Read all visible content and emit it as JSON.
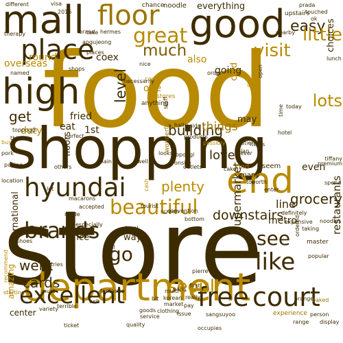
{
  "palette": [
    "#3d2b00",
    "#5c4100",
    "#7a5a00",
    "#9c7400",
    "#b88a00",
    "#c99a10"
  ],
  "words": [
    {
      "t": "food",
      "c": 4,
      "v": false
    },
    {
      "t": "store",
      "c": 0,
      "v": false
    },
    {
      "t": "shopping",
      "c": 0,
      "v": false
    },
    {
      "t": "department",
      "c": 4,
      "v": false
    },
    {
      "t": "mall",
      "c": 0,
      "v": false
    },
    {
      "t": "good",
      "c": 0,
      "v": false
    },
    {
      "t": "high",
      "c": 0,
      "v": false
    },
    {
      "t": "place",
      "c": 0,
      "v": false
    },
    {
      "t": "floor",
      "c": 3,
      "v": false
    },
    {
      "t": "end",
      "c": 4,
      "v": false
    },
    {
      "t": "hyundai",
      "c": 0,
      "v": false
    },
    {
      "t": "great",
      "c": 4,
      "v": false
    },
    {
      "t": "free",
      "c": 0,
      "v": false
    },
    {
      "t": "court",
      "c": 0,
      "v": false
    },
    {
      "t": "excellent",
      "c": 0,
      "v": false
    },
    {
      "t": "beautiful",
      "c": 4,
      "v": false
    },
    {
      "t": "brands",
      "c": 0,
      "v": false
    },
    {
      "t": "see",
      "c": 0,
      "v": false
    },
    {
      "t": "like",
      "c": 0,
      "v": false
    },
    {
      "t": "visit",
      "c": 4,
      "v": false
    },
    {
      "t": "much",
      "c": 2,
      "v": false
    },
    {
      "t": "easy",
      "c": 0,
      "v": false
    },
    {
      "t": "seoul",
      "c": 4,
      "v": false
    },
    {
      "t": "go",
      "c": 0,
      "v": false
    },
    {
      "t": "get",
      "c": 0,
      "v": false
    },
    {
      "t": "level",
      "c": 0,
      "v": true
    },
    {
      "t": "little",
      "c": 4,
      "v": false
    },
    {
      "t": "lots",
      "c": 4,
      "v": false
    },
    {
      "t": "plenty",
      "c": 4,
      "v": false
    },
    {
      "t": "downstairs",
      "c": 0,
      "v": false
    },
    {
      "t": "grocery",
      "c": 0,
      "v": false
    },
    {
      "t": "supermarket",
      "c": 0,
      "v": true
    },
    {
      "t": "restaurants",
      "c": 0,
      "v": true
    },
    {
      "t": "international",
      "c": 0,
      "v": true
    },
    {
      "t": "cards",
      "c": 0,
      "v": false
    },
    {
      "t": "went",
      "c": 0,
      "v": false
    },
    {
      "t": "metro",
      "c": 0,
      "v": false
    },
    {
      "t": "line",
      "c": 0,
      "v": false
    },
    {
      "t": "building",
      "c": 0,
      "v": false
    },
    {
      "t": "things",
      "c": 3,
      "v": false
    },
    {
      "t": "love",
      "c": 0,
      "v": false
    },
    {
      "t": "overseas",
      "c": 4,
      "v": false
    },
    {
      "t": "round",
      "c": 4,
      "v": false
    },
    {
      "t": "duty",
      "c": 4,
      "v": false
    },
    {
      "t": "fried",
      "c": 0,
      "v": false
    },
    {
      "t": "eat",
      "c": 0,
      "v": false
    },
    {
      "t": "1st",
      "c": 0,
      "v": false
    },
    {
      "t": "coex",
      "c": 0,
      "v": false
    },
    {
      "t": "also",
      "c": 4,
      "v": false
    },
    {
      "t": "one",
      "c": 4,
      "v": false
    },
    {
      "t": "going",
      "c": 0,
      "v": false
    },
    {
      "t": "everything",
      "c": 0,
      "v": false
    },
    {
      "t": "choices",
      "c": 0,
      "v": true
    },
    {
      "t": "may",
      "c": 0,
      "v": false
    },
    {
      "t": "way",
      "c": 0,
      "v": false
    },
    {
      "t": "rice",
      "c": 0,
      "v": false
    },
    {
      "t": "cold",
      "c": 4,
      "v": true
    },
    {
      "t": "floors",
      "c": 0,
      "v": true
    },
    {
      "t": "amazing",
      "c": 4,
      "v": true
    },
    {
      "t": "center",
      "c": 0,
      "v": false
    },
    {
      "t": "even",
      "c": 0,
      "v": false
    },
    {
      "t": "seem",
      "c": 0,
      "v": false
    },
    {
      "t": "kind",
      "c": 3,
      "v": false
    },
    {
      "t": "many",
      "c": 0,
      "v": false
    },
    {
      "t": "could",
      "c": 4,
      "v": false
    },
    {
      "t": "stores",
      "c": 4,
      "v": false
    },
    {
      "t": "anything",
      "c": 0,
      "v": false
    },
    {
      "t": "noodle",
      "c": 0,
      "v": false
    },
    {
      "t": "chance",
      "c": 0,
      "v": false
    },
    {
      "t": "upstairs",
      "c": 0,
      "v": false
    },
    {
      "t": "quality",
      "c": 0,
      "v": false
    },
    {
      "t": "service",
      "c": 0,
      "v": false
    },
    {
      "t": "goods",
      "c": 0,
      "v": false
    },
    {
      "t": "clothing",
      "c": 0,
      "v": false
    },
    {
      "t": "market",
      "c": 0,
      "v": false
    },
    {
      "t": "korean",
      "c": 0,
      "v": false
    },
    {
      "t": "multi",
      "c": 0,
      "v": false
    },
    {
      "t": "variety",
      "c": 0,
      "v": false
    },
    {
      "t": "pastries",
      "c": 0,
      "v": false
    },
    {
      "t": "fantastic",
      "c": 0,
      "v": false
    },
    {
      "t": "exit",
      "c": 0,
      "v": false
    },
    {
      "t": "experience",
      "c": 3,
      "v": false
    },
    {
      "t": "master",
      "c": 0,
      "v": false
    },
    {
      "t": "popular",
      "c": 0,
      "v": false
    },
    {
      "t": "expensive",
      "c": 0,
      "v": false
    },
    {
      "t": "definitely",
      "c": 0,
      "v": false
    },
    {
      "t": "enter",
      "c": 0,
      "v": false
    },
    {
      "t": "worth",
      "c": 0,
      "v": false
    },
    {
      "t": "top",
      "c": 0,
      "v": false
    },
    {
      "t": "cake",
      "c": 0,
      "v": false
    },
    {
      "t": "never",
      "c": 0,
      "v": false
    },
    {
      "t": "hotel",
      "c": 0,
      "v": false
    },
    {
      "t": "today",
      "c": 0,
      "v": false
    },
    {
      "t": "order",
      "c": 0,
      "v": false
    },
    {
      "t": "nice",
      "c": 0,
      "v": false
    },
    {
      "t": "visa",
      "c": 0,
      "v": false
    },
    {
      "t": "different",
      "c": 0,
      "v": false
    },
    {
      "t": "hermes",
      "c": 0,
      "v": false
    },
    {
      "t": "brand",
      "c": 0,
      "v": false
    },
    {
      "t": "take",
      "c": 0,
      "v": false
    },
    {
      "t": "apgujeong",
      "c": 0,
      "v": false
    },
    {
      "t": "prada",
      "c": 0,
      "v": false
    },
    {
      "t": "places",
      "c": 0,
      "v": false
    },
    {
      "t": "shops",
      "c": 0,
      "v": false
    },
    {
      "t": "main",
      "c": 0,
      "v": false
    },
    {
      "t": "well",
      "c": 0,
      "v": false
    },
    {
      "t": "inside",
      "c": 0,
      "v": false
    },
    {
      "t": "hall",
      "c": 0,
      "v": false
    },
    {
      "t": "looks",
      "c": 0,
      "v": false
    },
    {
      "t": "screen",
      "c": 0,
      "v": false
    },
    {
      "t": "local",
      "c": 0,
      "v": false
    },
    {
      "t": "wonderful",
      "c": 3,
      "v": true
    },
    {
      "t": "convention",
      "c": 0,
      "v": false
    },
    {
      "t": "bottom",
      "c": 0,
      "v": false
    },
    {
      "t": "especially",
      "c": 0,
      "v": false
    },
    {
      "t": "accepted",
      "c": 0,
      "v": false
    },
    {
      "t": "macarons",
      "c": 0,
      "v": false
    },
    {
      "t": "lot",
      "c": 0,
      "v": false
    },
    {
      "t": "made",
      "c": 0,
      "v": false
    },
    {
      "t": "tables",
      "c": 0,
      "v": false
    },
    {
      "t": "ordered",
      "c": 0,
      "v": true
    },
    {
      "t": "noodles",
      "c": 0,
      "v": false
    },
    {
      "t": "taking",
      "c": 0,
      "v": false
    },
    {
      "t": "spend",
      "c": 0,
      "v": false
    },
    {
      "t": "premium",
      "c": 0,
      "v": false
    },
    {
      "t": "tiffany",
      "c": 0,
      "v": false
    },
    {
      "t": "person",
      "c": 0,
      "v": false
    },
    {
      "t": "display",
      "c": 0,
      "v": false
    },
    {
      "t": "orange",
      "c": 0,
      "v": false
    },
    {
      "t": "baked",
      "c": 3,
      "v": false
    },
    {
      "t": "paris",
      "c": 0,
      "v": false
    },
    {
      "t": "issue",
      "c": 0,
      "v": false
    },
    {
      "t": "pay",
      "c": 0,
      "v": false
    },
    {
      "t": "really",
      "c": 0,
      "v": false
    },
    {
      "t": "bit",
      "c": 0,
      "v": false
    },
    {
      "t": "must",
      "c": 0,
      "v": false
    },
    {
      "t": "recommend",
      "c": 4,
      "v": true
    },
    {
      "t": "starting",
      "c": 3,
      "v": false
    },
    {
      "t": "ticket",
      "c": 0,
      "v": false
    },
    {
      "t": "terrible",
      "c": 0,
      "v": false
    },
    {
      "t": "till",
      "c": 0,
      "v": false
    },
    {
      "t": "first",
      "c": 0,
      "v": false
    },
    {
      "t": "range",
      "c": 0,
      "v": false
    },
    {
      "t": "location",
      "c": 0,
      "v": false
    },
    {
      "t": "others",
      "c": 0,
      "v": false
    },
    {
      "t": "perfect",
      "c": 0,
      "v": false
    },
    {
      "t": "think",
      "c": 0,
      "v": false
    },
    {
      "t": "paying",
      "c": 0,
      "v": false
    },
    {
      "t": "buy",
      "c": 4,
      "v": false
    },
    {
      "t": "pork",
      "c": 0,
      "v": false
    },
    {
      "t": "products",
      "c": 0,
      "v": false
    },
    {
      "t": "possibly",
      "c": 4,
      "v": false
    },
    {
      "t": "patient",
      "c": 0,
      "v": false
    },
    {
      "t": "plan",
      "c": 0,
      "v": false
    },
    {
      "t": "items",
      "c": 0,
      "v": false
    },
    {
      "t": "open",
      "c": 0,
      "v": true
    },
    {
      "t": "shop",
      "c": 4,
      "v": false
    },
    {
      "t": "touched",
      "c": 0,
      "v": false
    },
    {
      "t": "therapy",
      "c": 0,
      "v": false
    },
    {
      "t": "2016",
      "c": 0,
      "v": false
    },
    {
      "t": "ok",
      "c": 0,
      "v": false
    },
    {
      "t": "nearby",
      "c": 0,
      "v": false
    },
    {
      "t": "lunch",
      "c": 0,
      "v": false
    },
    {
      "t": "named",
      "c": 0,
      "v": false
    },
    {
      "t": "necessarily",
      "c": 0,
      "v": false
    },
    {
      "t": "time",
      "c": 0,
      "v": true
    },
    {
      "t": "staff",
      "c": 0,
      "v": true
    },
    {
      "t": "toppoggi",
      "c": 0,
      "v": false
    },
    {
      "t": "topoggi",
      "c": 0,
      "v": false
    },
    {
      "t": "outlets",
      "c": 0,
      "v": false
    },
    {
      "t": "onsite",
      "c": 0,
      "v": false
    },
    {
      "t": "tourist",
      "c": 0,
      "v": false
    },
    {
      "t": "cash",
      "c": 4,
      "v": true
    },
    {
      "t": "pierre",
      "c": 0,
      "v": false
    },
    {
      "t": "sangsuyoo",
      "c": 0,
      "v": false
    },
    {
      "t": "occupies",
      "c": 0,
      "v": false
    },
    {
      "t": "shoes",
      "c": 0,
      "v": false
    }
  ]
}
